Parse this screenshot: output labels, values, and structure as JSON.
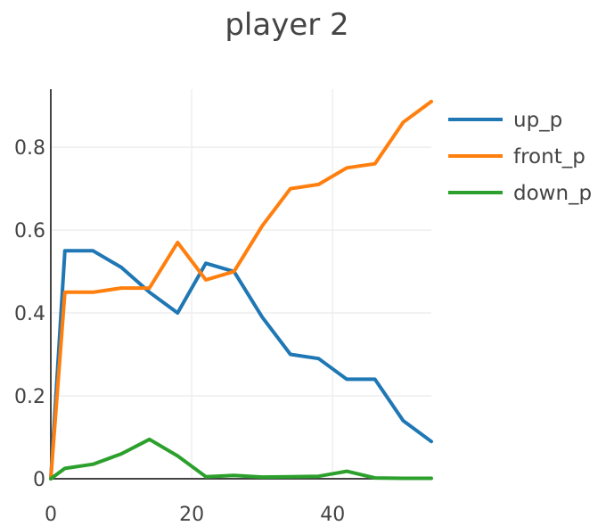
{
  "chart_data": {
    "type": "line",
    "title": "player 2",
    "xlabel": "",
    "ylabel": "",
    "xlim": [
      0,
      54
    ],
    "ylim": [
      0,
      0.94
    ],
    "x_ticks": [
      0,
      20,
      40
    ],
    "y_ticks": [
      0,
      0.2,
      0.4,
      0.6,
      0.8
    ],
    "x_tick_labels": [
      "0",
      "20",
      "40"
    ],
    "y_tick_labels": [
      "0",
      "0.2",
      "0.4",
      "0.6",
      "0.8"
    ],
    "grid": true,
    "legend_position": "top-right",
    "x": [
      0,
      2,
      6,
      10,
      14,
      18,
      22,
      26,
      30,
      34,
      38,
      42,
      46,
      50,
      54
    ],
    "series": [
      {
        "name": "up_p",
        "color": "#1f77b4",
        "values": [
          0,
          0.55,
          0.55,
          0.51,
          0.45,
          0.4,
          0.52,
          0.5,
          0.39,
          0.3,
          0.29,
          0.24,
          0.24,
          0.14,
          0.09
        ]
      },
      {
        "name": "front_p",
        "color": "#ff7f0e",
        "values": [
          0,
          0.45,
          0.45,
          0.46,
          0.46,
          0.57,
          0.48,
          0.5,
          0.61,
          0.7,
          0.71,
          0.75,
          0.76,
          0.86,
          0.91
        ]
      },
      {
        "name": "down_p",
        "color": "#2ca02c",
        "values": [
          0,
          0.025,
          0.035,
          0.06,
          0.095,
          0.055,
          0.005,
          0.008,
          0.004,
          0.005,
          0.006,
          0.018,
          0.002,
          0.001,
          0.001
        ]
      }
    ]
  }
}
